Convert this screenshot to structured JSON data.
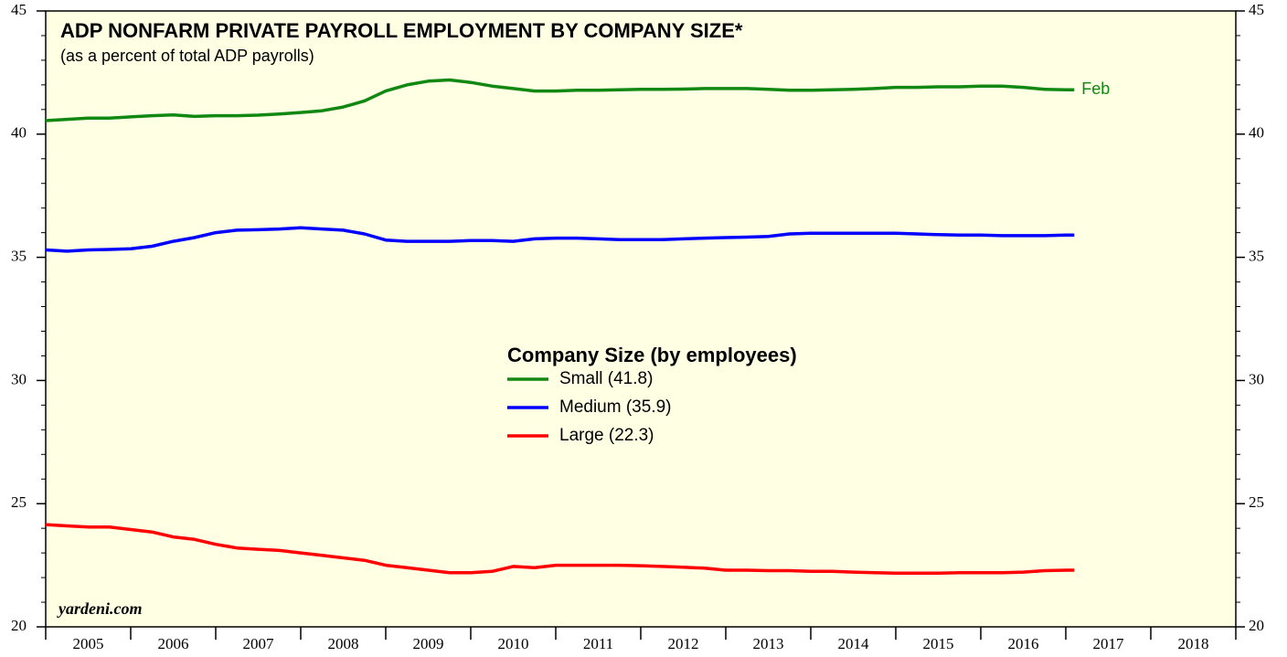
{
  "chart_data": {
    "type": "line",
    "title": "ADP NONFARM PRIVATE PAYROLL EMPLOYMENT BY COMPANY SIZE*",
    "subtitle": "(as a percent of total ADP payrolls)",
    "legend_title": "Company Size (by employees)",
    "source": "yardeni.com",
    "annotation": "Feb",
    "x": [
      2005.0,
      2005.25,
      2005.5,
      2005.75,
      2006.0,
      2006.25,
      2006.5,
      2006.75,
      2007.0,
      2007.25,
      2007.5,
      2007.75,
      2008.0,
      2008.25,
      2008.5,
      2008.75,
      2009.0,
      2009.25,
      2009.5,
      2009.75,
      2010.0,
      2010.25,
      2010.5,
      2010.75,
      2011.0,
      2011.25,
      2011.5,
      2011.75,
      2012.0,
      2012.25,
      2012.5,
      2012.75,
      2013.0,
      2013.25,
      2013.5,
      2013.75,
      2014.0,
      2014.25,
      2014.5,
      2014.75,
      2015.0,
      2015.25,
      2015.5,
      2015.75,
      2016.0,
      2016.25,
      2016.5,
      2016.75,
      2017.0,
      2017.1
    ],
    "series": [
      {
        "name": "Small (41.8)",
        "color": "#118811",
        "values": [
          40.55,
          40.6,
          40.65,
          40.65,
          40.7,
          40.75,
          40.78,
          40.72,
          40.75,
          40.75,
          40.77,
          40.82,
          40.88,
          40.95,
          41.1,
          41.35,
          41.75,
          42.0,
          42.15,
          42.2,
          42.1,
          41.95,
          41.85,
          41.75,
          41.75,
          41.78,
          41.78,
          41.8,
          41.82,
          41.82,
          41.83,
          41.85,
          41.85,
          41.85,
          41.82,
          41.78,
          41.78,
          41.8,
          41.82,
          41.85,
          41.9,
          41.9,
          41.92,
          41.92,
          41.95,
          41.95,
          41.9,
          41.82,
          41.8,
          41.8
        ]
      },
      {
        "name": "Medium (35.9)",
        "color": "#0000ff",
        "values": [
          35.3,
          35.25,
          35.3,
          35.32,
          35.35,
          35.45,
          35.65,
          35.8,
          36.0,
          36.1,
          36.12,
          36.15,
          36.2,
          36.15,
          36.1,
          35.95,
          35.7,
          35.65,
          35.65,
          35.65,
          35.68,
          35.68,
          35.65,
          35.75,
          35.78,
          35.78,
          35.75,
          35.72,
          35.72,
          35.72,
          35.75,
          35.78,
          35.8,
          35.82,
          35.85,
          35.95,
          35.98,
          35.98,
          35.98,
          35.98,
          35.98,
          35.95,
          35.92,
          35.9,
          35.9,
          35.88,
          35.88,
          35.88,
          35.9,
          35.9
        ]
      },
      {
        "name": "Large (22.3)",
        "color": "#ff0000",
        "values": [
          24.15,
          24.1,
          24.05,
          24.05,
          23.95,
          23.85,
          23.65,
          23.55,
          23.35,
          23.2,
          23.15,
          23.1,
          23.0,
          22.9,
          22.8,
          22.7,
          22.5,
          22.4,
          22.3,
          22.2,
          22.2,
          22.25,
          22.45,
          22.4,
          22.5,
          22.5,
          22.5,
          22.5,
          22.48,
          22.45,
          22.42,
          22.38,
          22.3,
          22.3,
          22.28,
          22.28,
          22.25,
          22.25,
          22.22,
          22.2,
          22.18,
          22.18,
          22.18,
          22.2,
          22.2,
          22.2,
          22.22,
          22.28,
          22.3,
          22.3
        ]
      }
    ],
    "xlim": [
      2005,
      2019
    ],
    "xticks": [
      2005,
      2006,
      2007,
      2008,
      2009,
      2010,
      2011,
      2012,
      2013,
      2014,
      2015,
      2016,
      2017,
      2018,
      2019
    ],
    "year_labels": [
      "2005",
      "2006",
      "2007",
      "2008",
      "2009",
      "2010",
      "2011",
      "2012",
      "2013",
      "2014",
      "2015",
      "2016",
      "2017",
      "2018"
    ],
    "ylim": [
      20,
      45
    ],
    "yticks": [
      20,
      25,
      30,
      35,
      40,
      45
    ],
    "background": "#ffffe4"
  }
}
